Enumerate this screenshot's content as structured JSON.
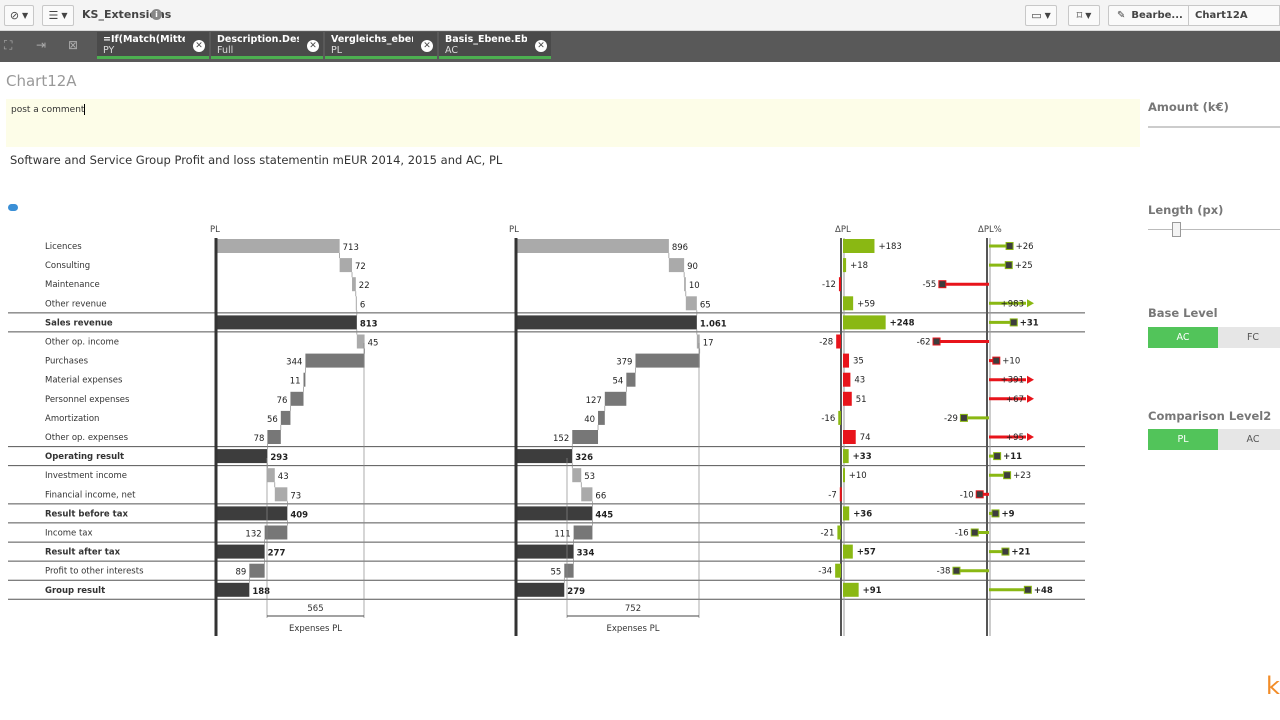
{
  "toolbar": {
    "app_title": "KS_Extensions",
    "edit_label": "Bearbe...",
    "sheet_label": "Chart12A"
  },
  "selections": [
    {
      "field": "=If(Match(Mitte...",
      "value": "PY"
    },
    {
      "field": "Description.Des...",
      "value": "Full"
    },
    {
      "field": "Vergleichs_eben...",
      "value": "PL"
    },
    {
      "field": "Basis_Ebene.Ebe...",
      "value": "AC"
    }
  ],
  "chart_title": "Chart12A",
  "comment_text": "post a comment",
  "subtitle": "Software and Service Group Profit and loss statementin mEUR 2014, 2015 and AC, PL",
  "panel": {
    "amount_label": "Amount (k€)",
    "length_label": "Length (px)",
    "base_level_label": "Base Level",
    "base_level_options": [
      "AC",
      "FC"
    ],
    "comparison_label": "Comparison Level2",
    "comparison_options": [
      "PL",
      "AC"
    ]
  },
  "colors": {
    "accent_green": "#52c45a",
    "delta_pos": "#8ab813",
    "delta_neg": "#e8141b",
    "total": "#3d3d3d"
  },
  "chart_data": {
    "type": "table",
    "column_headers": [
      "PL",
      "PL",
      "ΔPL",
      "ΔPL%"
    ],
    "rows": [
      {
        "label": "Licences",
        "bold": false,
        "kind": "rev",
        "a": "713",
        "b": "896",
        "d": "+183",
        "p": "+26"
      },
      {
        "label": "Consulting",
        "bold": false,
        "kind": "rev",
        "a": "72",
        "b": "90",
        "d": "+18",
        "p": "+25"
      },
      {
        "label": "Maintenance",
        "bold": false,
        "kind": "rev",
        "a": "22",
        "b": "10",
        "d": "-12",
        "p": "-55"
      },
      {
        "label": "Other revenue",
        "bold": false,
        "kind": "rev",
        "a": "6",
        "b": "65",
        "d": "+59",
        "p": "+983"
      },
      {
        "label": "Sales revenue",
        "bold": true,
        "kind": "total",
        "a": "813",
        "b": "1.061",
        "d": "+248",
        "p": "+31"
      },
      {
        "label": "Other op. income",
        "bold": false,
        "kind": "rev",
        "a": "45",
        "b": "17",
        "d": "-28",
        "p": "-62"
      },
      {
        "label": "Purchases",
        "bold": false,
        "kind": "exp",
        "a": "344",
        "b": "379",
        "d": "35",
        "p": "+10"
      },
      {
        "label": "Material expenses",
        "bold": false,
        "kind": "exp",
        "a": "11",
        "b": "54",
        "d": "43",
        "p": "+391"
      },
      {
        "label": "Personnel expenses",
        "bold": false,
        "kind": "exp",
        "a": "76",
        "b": "127",
        "d": "51",
        "p": "+67"
      },
      {
        "label": "Amortization",
        "bold": false,
        "kind": "exp",
        "a": "56",
        "b": "40",
        "d": "-16",
        "p": "-29"
      },
      {
        "label": "Other op. expenses",
        "bold": false,
        "kind": "exp",
        "a": "78",
        "b": "152",
        "d": "74",
        "p": "+95"
      },
      {
        "label": "Operating result",
        "bold": true,
        "kind": "total",
        "a": "293",
        "b": "326",
        "d": "+33",
        "p": "+11"
      },
      {
        "label": "Investment income",
        "bold": false,
        "kind": "rev",
        "a": "43",
        "b": "53",
        "d": "+10",
        "p": "+23"
      },
      {
        "label": "Financial income, net",
        "bold": false,
        "kind": "rev",
        "a": "73",
        "b": "66",
        "d": "-7",
        "p": "-10"
      },
      {
        "label": "Result before tax",
        "bold": true,
        "kind": "total",
        "a": "409",
        "b": "445",
        "d": "+36",
        "p": "+9"
      },
      {
        "label": "Income tax",
        "bold": false,
        "kind": "exp",
        "a": "132",
        "b": "111",
        "d": "-21",
        "p": "-16"
      },
      {
        "label": "Result after tax",
        "bold": true,
        "kind": "total",
        "a": "277",
        "b": "334",
        "d": "+57",
        "p": "+21"
      },
      {
        "label": "Profit to other interests",
        "bold": false,
        "kind": "exp",
        "a": "89",
        "b": "55",
        "d": "-34",
        "p": "-38"
      },
      {
        "label": "Group result",
        "bold": true,
        "kind": "total",
        "a": "188",
        "b": "279",
        "d": "+91",
        "p": "+48"
      }
    ],
    "bracket_a": {
      "value": "565",
      "label": "Expenses PL"
    },
    "bracket_b": {
      "value": "752",
      "label": "Expenses PL"
    }
  }
}
